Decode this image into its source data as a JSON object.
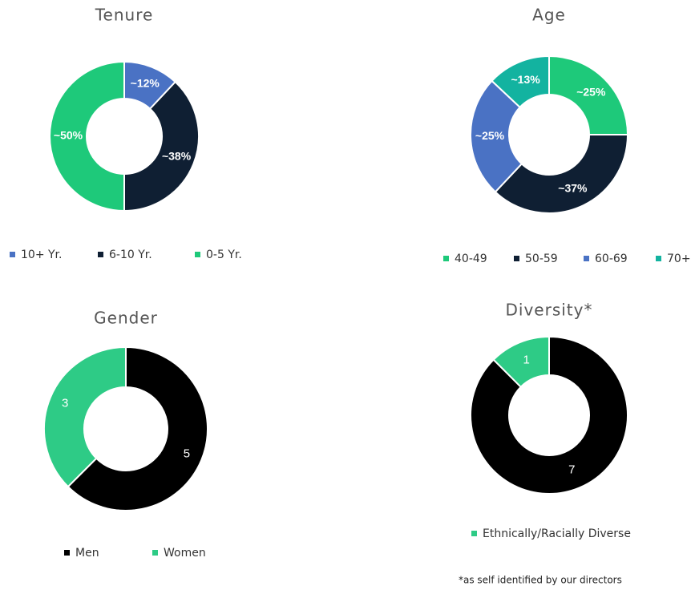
{
  "chart_data": [
    {
      "type": "donut",
      "title": "Tenure",
      "categories": [
        "10+ Yr.",
        "6-10 Yr.",
        "0-5 Yr."
      ],
      "values": [
        12,
        38,
        50
      ],
      "value_labels": [
        "~12%",
        "~38%",
        "~50%"
      ],
      "colors": [
        "#4a72c4",
        "#0f1f33",
        "#1ec97a"
      ]
    },
    {
      "type": "donut",
      "title": "Age",
      "categories": [
        "40-49",
        "50-59",
        "60-69",
        "70+"
      ],
      "values": [
        25,
        37,
        25,
        13
      ],
      "value_labels": [
        "~25%",
        "~37%",
        "~25%",
        "~13%"
      ],
      "colors": [
        "#1ec97a",
        "#0f1f33",
        "#4a72c4",
        "#13b3a0"
      ]
    },
    {
      "type": "donut",
      "title": "Gender",
      "categories": [
        "Men",
        "Women"
      ],
      "values": [
        5,
        3
      ],
      "colors": [
        "#000000",
        "#2ecb86"
      ]
    },
    {
      "type": "donut",
      "title": "Diversity*",
      "categories": [
        null,
        "Ethnically/Racially Diverse"
      ],
      "values": [
        7,
        1
      ],
      "colors": [
        "#000000",
        "#2ecb86"
      ],
      "footnote": "*as self identified by our directors"
    }
  ]
}
